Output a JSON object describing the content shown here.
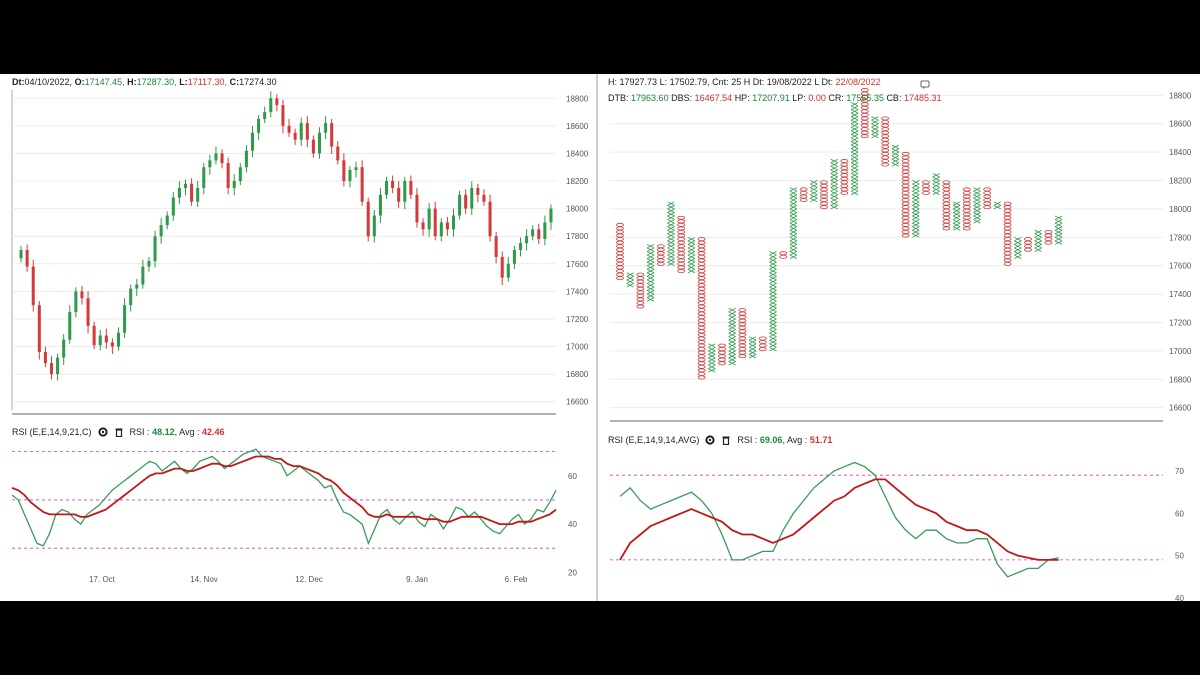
{
  "left": {
    "header": {
      "dt_label": "Dt:",
      "dt_value": "04/10/2022,",
      "o_label": "O:",
      "o_value": "17147.45,",
      "h_label": "H:",
      "h_value": "17287.30,",
      "l_label": "L:",
      "l_value": "17117.30,",
      "c_label": "C:",
      "c_value": "17274.30"
    },
    "rsi_header": {
      "title": "RSI (E,E,14,9,21,C)",
      "rsi_label": "RSI :",
      "rsi_value": "48.12",
      "avg_label": "Avg :",
      "avg_value": "42.46"
    }
  },
  "right": {
    "header1": {
      "h_label": "H:",
      "h_value": "17927.73",
      "l_label": "L:",
      "l_value": "17502.79,",
      "cnt_label": "Cnt:",
      "cnt_value": "25 H",
      "dt_label": "Dt:",
      "dt_value": "19/08/2022",
      "ldt_label": "L Dt:",
      "ldt_value": "22/08/2022"
    },
    "header2": {
      "dtb_label": "DTB:",
      "dtb_value": "17963.60",
      "dbs_label": "DBS:",
      "dbs_value": "16467.54",
      "hp_label": "HP:",
      "hp_value": "17207.91",
      "lp_label": "LP:",
      "lp_value": "0.00",
      "cr_label": "CR:",
      "cr_value": "17555.35",
      "cb_label": "CB:",
      "cb_value": "17485.31"
    },
    "rsi_header": {
      "title": "RSI (E,E,14,9,14,AVG)",
      "rsi_label": "RSI :",
      "rsi_value": "69.06",
      "avg_label": "Avg :",
      "avg_value": "51.71"
    }
  },
  "colors": {
    "up": "#2e9a4a",
    "down": "#d23b3b",
    "avg_line": "#c01818",
    "rsi_line": "#3a9a5a",
    "guide": "#c040c0"
  },
  "chart_data": [
    {
      "type": "candlestick",
      "title": "",
      "y_ticks": [
        16600,
        16800,
        17000,
        17200,
        17400,
        17600,
        17800,
        18000,
        18200,
        18400,
        18600,
        18800
      ],
      "ylim": [
        16540,
        18860
      ],
      "x_tick_labels": [
        "17. Oct",
        "14. Nov",
        "12. Dec",
        "9. Jan",
        "6. Feb"
      ],
      "closes": [
        17700,
        17580,
        17300,
        16960,
        16880,
        16800,
        16920,
        17050,
        17250,
        17400,
        17350,
        17150,
        17010,
        17080,
        17030,
        17000,
        17100,
        17300,
        17420,
        17450,
        17580,
        17620,
        17800,
        17880,
        17950,
        18080,
        18150,
        18180,
        18050,
        18150,
        18300,
        18350,
        18400,
        18330,
        18150,
        18200,
        18300,
        18420,
        18550,
        18650,
        18700,
        18800,
        18750,
        18600,
        18550,
        18500,
        18620,
        18500,
        18400,
        18550,
        18620,
        18450,
        18350,
        18200,
        18280,
        18300,
        18050,
        17800,
        17950,
        18100,
        18200,
        18150,
        18050,
        18200,
        18100,
        17900,
        17850,
        18000,
        17800,
        17900,
        17850,
        17950,
        18100,
        18000,
        18150,
        18100,
        18050,
        17800,
        17650,
        17500,
        17600,
        17700,
        17750,
        17800,
        17850,
        17780,
        17900,
        18000
      ],
      "rsi_y_ticks": [
        20,
        40,
        60
      ],
      "rsi_ylim": [
        16,
        74
      ],
      "rsi_guides": [
        30,
        50,
        70
      ],
      "rsi": [
        52,
        50,
        44,
        38,
        32,
        31,
        36,
        44,
        46,
        45,
        42,
        40,
        44,
        46,
        48,
        51,
        54,
        56,
        58,
        60,
        62,
        64,
        66,
        65,
        62,
        64,
        66,
        63,
        61,
        63,
        66,
        67,
        68,
        66,
        63,
        65,
        67,
        69,
        70,
        71,
        68,
        67,
        66,
        65,
        60,
        62,
        64,
        62,
        60,
        58,
        55,
        56,
        50,
        45,
        44,
        42,
        40,
        32,
        38,
        44,
        46,
        42,
        40,
        43,
        45,
        41,
        39,
        44,
        42,
        38,
        42,
        47,
        46,
        43,
        45,
        42,
        39,
        37,
        36,
        39,
        42,
        44,
        40,
        42,
        46,
        45,
        49,
        54
      ],
      "rsi_avg": [
        55,
        54,
        52,
        49,
        47,
        45,
        44,
        44,
        44,
        44,
        44,
        43,
        43,
        44,
        45,
        46,
        48,
        50,
        52,
        54,
        56,
        58,
        60,
        61,
        61,
        62,
        63,
        63,
        62,
        62,
        63,
        64,
        65,
        65,
        64,
        64,
        65,
        66,
        67,
        68,
        68,
        68,
        67,
        67,
        65,
        64,
        64,
        63,
        62,
        61,
        59,
        58,
        56,
        53,
        51,
        49,
        47,
        44,
        43,
        43,
        44,
        43,
        43,
        43,
        43,
        43,
        42,
        42,
        42,
        41,
        41,
        42,
        43,
        43,
        43,
        43,
        42,
        41,
        40,
        40,
        40,
        41,
        41,
        41,
        42,
        43,
        44,
        46
      ]
    },
    {
      "type": "point-and-figure",
      "title": "",
      "y_ticks": [
        16600,
        16800,
        17000,
        17200,
        17400,
        17600,
        17800,
        18000,
        18200,
        18400,
        18600,
        18800
      ],
      "ylim": [
        16520,
        18880
      ],
      "columns": [
        {
          "type": "O",
          "high": 17900,
          "low": 17500
        },
        {
          "type": "X",
          "high": 17550,
          "low": 17450
        },
        {
          "type": "O",
          "high": 17550,
          "low": 17300
        },
        {
          "type": "X",
          "high": 17750,
          "low": 17350
        },
        {
          "type": "O",
          "high": 17750,
          "low": 17600
        },
        {
          "type": "X",
          "high": 18050,
          "low": 17600
        },
        {
          "type": "O",
          "high": 17950,
          "low": 17550
        },
        {
          "type": "X",
          "high": 17800,
          "low": 17550
        },
        {
          "type": "O",
          "high": 17800,
          "low": 16800
        },
        {
          "type": "X",
          "high": 17050,
          "low": 16850
        },
        {
          "type": "O",
          "high": 17050,
          "low": 16900
        },
        {
          "type": "X",
          "high": 17300,
          "low": 16900
        },
        {
          "type": "O",
          "high": 17300,
          "low": 16950
        },
        {
          "type": "X",
          "high": 17100,
          "low": 16950
        },
        {
          "type": "O",
          "high": 17100,
          "low": 17000
        },
        {
          "type": "X",
          "high": 17700,
          "low": 17000
        },
        {
          "type": "O",
          "high": 17700,
          "low": 17650
        },
        {
          "type": "X",
          "high": 18150,
          "low": 17650
        },
        {
          "type": "O",
          "high": 18150,
          "low": 18050
        },
        {
          "type": "X",
          "high": 18200,
          "low": 18050
        },
        {
          "type": "O",
          "high": 18200,
          "low": 18000
        },
        {
          "type": "X",
          "high": 18350,
          "low": 18000
        },
        {
          "type": "O",
          "high": 18350,
          "low": 18100
        },
        {
          "type": "X",
          "high": 18750,
          "low": 18100
        },
        {
          "type": "O",
          "high": 18850,
          "low": 18500
        },
        {
          "type": "X",
          "high": 18650,
          "low": 18500
        },
        {
          "type": "O",
          "high": 18650,
          "low": 18300
        },
        {
          "type": "X",
          "high": 18450,
          "low": 18300
        },
        {
          "type": "O",
          "high": 18400,
          "low": 17800
        },
        {
          "type": "X",
          "high": 18200,
          "low": 17800
        },
        {
          "type": "O",
          "high": 18200,
          "low": 18100
        },
        {
          "type": "X",
          "high": 18250,
          "low": 18100
        },
        {
          "type": "O",
          "high": 18200,
          "low": 17850
        },
        {
          "type": "X",
          "high": 18050,
          "low": 17850
        },
        {
          "type": "O",
          "high": 18150,
          "low": 17850
        },
        {
          "type": "X",
          "high": 18150,
          "low": 17900
        },
        {
          "type": "O",
          "high": 18150,
          "low": 18000
        },
        {
          "type": "X",
          "high": 18050,
          "low": 18000
        },
        {
          "type": "O",
          "high": 18050,
          "low": 17600
        },
        {
          "type": "X",
          "high": 17800,
          "low": 17650
        },
        {
          "type": "O",
          "high": 17800,
          "low": 17700
        },
        {
          "type": "X",
          "high": 17850,
          "low": 17700
        },
        {
          "type": "O",
          "high": 17850,
          "low": 17750
        },
        {
          "type": "X",
          "high": 17950,
          "low": 17750
        }
      ],
      "rsi_y_ticks": [
        40,
        50,
        60,
        70
      ],
      "rsi_ylim": [
        40,
        74
      ],
      "rsi_guides": [
        49,
        69
      ],
      "rsi": [
        64,
        66,
        63,
        61,
        62,
        63,
        64,
        65,
        63,
        60,
        55,
        49,
        49,
        50,
        51,
        51,
        56,
        60,
        63,
        66,
        68,
        70,
        71,
        72,
        71,
        69,
        64,
        59,
        56,
        54,
        56,
        56,
        54,
        53,
        53,
        54,
        54,
        48,
        45,
        46,
        47,
        47,
        49,
        49.5
      ],
      "rsi_avg": [
        49,
        53,
        55,
        57,
        58,
        59,
        60,
        61,
        60,
        59,
        58,
        56,
        55,
        55,
        54,
        53,
        54,
        55,
        57,
        59,
        61,
        63,
        64,
        66,
        67,
        68,
        68,
        66,
        64,
        62,
        61,
        60,
        58,
        57,
        56,
        56,
        55,
        53,
        51,
        50,
        49.5,
        49,
        49,
        49
      ]
    }
  ]
}
